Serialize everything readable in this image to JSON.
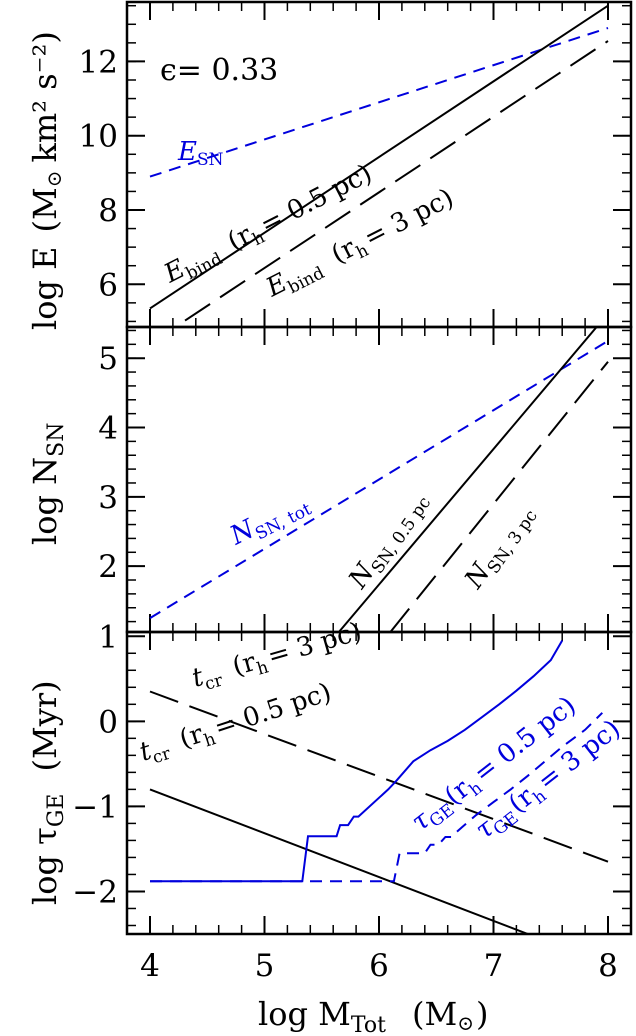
{
  "chart_data": [
    {
      "type": "line",
      "panel": "top",
      "ylabel_main": "log E",
      "ylabel_unit": "(M",
      "ylabel_unit_tail": "km² s⁻²)",
      "epsilon_label": "ϵ=  0.33",
      "xlim": [
        4,
        8
      ],
      "ylim": [
        4.85,
        13.6
      ],
      "yticks": [
        6,
        8,
        10,
        12
      ],
      "yticklabels": [
        "6",
        "8",
        "10",
        "12"
      ],
      "series": [
        {
          "name": "E_SN",
          "style": "blue-dashed",
          "color": "#0000dd",
          "x": [
            4,
            8
          ],
          "y": [
            8.9,
            12.9
          ]
        },
        {
          "name": "E_bind (r_h = 0.5 pc)",
          "style": "solid",
          "color": "#000000",
          "x": [
            4,
            8
          ],
          "y": [
            5.35,
            13.5
          ]
        },
        {
          "name": "E_bind (r_h = 3 pc)",
          "style": "long-dashed",
          "color": "#000000",
          "x": [
            4,
            8
          ],
          "y": [
            4.4,
            12.55
          ]
        }
      ],
      "annotations": {
        "esn": {
          "E": "E",
          "sub": "SN"
        },
        "ebind_05": {
          "E": "E",
          "sub": "bind",
          "rh": "(r",
          "rhsub": "h",
          "rest": "= 0.5 pc)"
        },
        "ebind_3": {
          "E": "E",
          "sub": "bind",
          "rh": "(r",
          "rhsub": "h",
          "rest": "= 3 pc)"
        }
      }
    },
    {
      "type": "line",
      "panel": "middle",
      "ylabel_main": "log N",
      "ylabel_sub": "SN",
      "xlim": [
        4,
        8
      ],
      "ylim": [
        1.05,
        5.45
      ],
      "yticks": [
        2,
        3,
        4,
        5
      ],
      "yticklabels": [
        "2",
        "3",
        "4",
        "5"
      ],
      "series": [
        {
          "name": "N_SN, tot",
          "style": "blue-dashed",
          "color": "#0000dd",
          "x": [
            4,
            8
          ],
          "y": [
            1.25,
            5.25
          ]
        },
        {
          "name": "N_SN, 0.5 pc",
          "style": "solid",
          "color": "#000000",
          "x": [
            5.65,
            7.9
          ],
          "y": [
            1.05,
            5.45
          ]
        },
        {
          "name": "N_SN, 3 pc",
          "style": "long-dashed",
          "color": "#000000",
          "x": [
            6.1,
            8.0
          ],
          "y": [
            1.05,
            4.95
          ]
        }
      ],
      "annotations": {
        "ntot": {
          "N": "N",
          "sub": "SN, tot"
        },
        "n05": {
          "N": "N",
          "sub": "SN, 0.5 pc"
        },
        "n3": {
          "N": "N",
          "sub": "SN, 3 pc"
        }
      }
    },
    {
      "type": "line",
      "panel": "bottom",
      "ylabel_main": "log τ",
      "ylabel_sub": "GE",
      "ylabel_unit": "(Myr)",
      "xlabel_main": "log M",
      "xlabel_sub": "Tot",
      "xlabel_unit": "(M",
      "xlim": [
        4,
        8
      ],
      "ylim": [
        -2.5,
        1.05
      ],
      "yticks": [
        -2,
        -1,
        0,
        1
      ],
      "yticklabels": [
        "−2",
        "−1",
        "0",
        "1"
      ],
      "xticks": [
        4,
        5,
        6,
        7,
        8
      ],
      "xticklabels": [
        "4",
        "5",
        "6",
        "7",
        "8"
      ],
      "series": [
        {
          "name": "t_cr (r_h = 3 pc)",
          "style": "long-dashed",
          "color": "#000000",
          "x": [
            4,
            8
          ],
          "y": [
            0.35,
            -1.65
          ]
        },
        {
          "name": "t_cr (r_h = 0.5 pc)",
          "style": "solid",
          "color": "#000000",
          "x": [
            4,
            7.3
          ],
          "y": [
            -0.8,
            -2.5
          ]
        },
        {
          "name": "τ_GE (r_h = 0.5 pc)",
          "style": "blue-solid",
          "color": "#0000dd",
          "x": [
            4,
            5.33,
            5.38,
            5.5,
            5.63,
            5.66,
            5.73,
            5.78,
            5.82,
            6.08,
            6.15,
            6.3,
            6.45,
            6.6,
            6.75,
            6.9,
            7.05,
            7.2,
            7.35,
            7.5,
            7.6
          ],
          "y": [
            -1.88,
            -1.88,
            -1.35,
            -1.35,
            -1.35,
            -1.22,
            -1.22,
            -1.12,
            -1.12,
            -0.8,
            -0.7,
            -0.47,
            -0.34,
            -0.23,
            -0.1,
            0.05,
            0.2,
            0.36,
            0.53,
            0.72,
            0.95
          ]
        },
        {
          "name": "τ_GE (r_h = 3 pc)",
          "style": "blue-dashed",
          "color": "#0000dd",
          "x": [
            4,
            6.13,
            6.18,
            6.25,
            6.4,
            6.45,
            6.52,
            6.58,
            6.63,
            6.72,
            6.85,
            7.0,
            7.15,
            7.3,
            7.45,
            7.6,
            7.8,
            7.95
          ],
          "y": [
            -1.88,
            -1.88,
            -1.55,
            -1.55,
            -1.55,
            -1.45,
            -1.45,
            -1.36,
            -1.36,
            -1.25,
            -1.1,
            -0.95,
            -0.8,
            -0.64,
            -0.47,
            -0.3,
            -0.1,
            0.1
          ]
        }
      ],
      "annotations": {
        "tcr3": {
          "t": "t",
          "sub": "cr",
          "rh": "(r",
          "rhsub": "h",
          "rest": "= 3 pc)"
        },
        "tcr05": {
          "t": "t",
          "sub": "cr",
          "rh": "(r",
          "rhsub": "h",
          "rest": "= 0.5 pc)"
        },
        "tge05": {
          "tau": "τ",
          "sub": "GE",
          "rh": "(r",
          "rhsub": "h",
          "rest": "= 0.5 pc)"
        },
        "tge3": {
          "tau": "τ",
          "sub": "GE",
          "rh": "(r",
          "rhsub": "h",
          "rest": "= 3 pc)"
        }
      }
    }
  ]
}
